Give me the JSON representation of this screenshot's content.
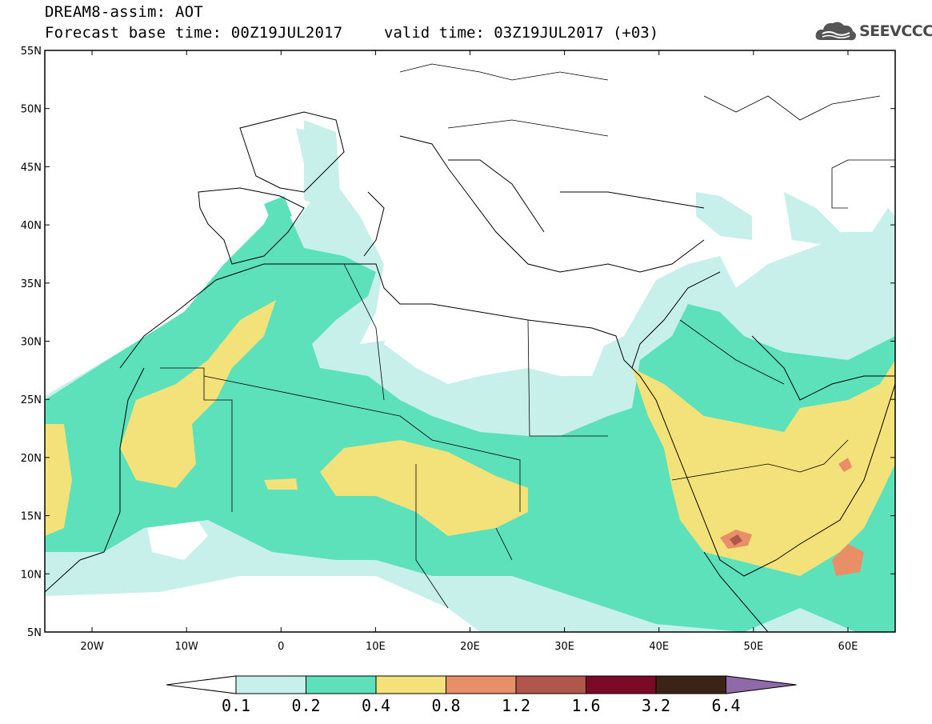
{
  "header": {
    "title": "DREAM8-assim: AOT",
    "base_time": "Forecast base time: 00Z19JUL2017",
    "valid_time": "valid time: 03Z19JUL2017 (+03)"
  },
  "logo": {
    "text": "SEEVCCC",
    "icon": "cloud-icon"
  },
  "axes": {
    "lat_labels": [
      "55N",
      "50N",
      "45N",
      "40N",
      "35N",
      "30N",
      "25N",
      "20N",
      "15N",
      "10N",
      "5N"
    ],
    "lat_values": [
      55,
      50,
      45,
      40,
      35,
      30,
      25,
      20,
      15,
      10,
      5
    ],
    "lon_labels": [
      "20W",
      "10W",
      "0",
      "10E",
      "20E",
      "30E",
      "40E",
      "50E",
      "60E"
    ],
    "lon_values": [
      -20,
      -10,
      0,
      10,
      20,
      30,
      40,
      50,
      60
    ],
    "lon_range": [
      -25,
      65
    ],
    "lat_range": [
      5,
      55
    ]
  },
  "legend": {
    "labels": [
      "0.1",
      "0.2",
      "0.4",
      "0.8",
      "1.2",
      "1.6",
      "3.2",
      "6.4"
    ],
    "colors": [
      "#ffffff",
      "#c8f0ea",
      "#5ce1bb",
      "#f3e27a",
      "#e98f67",
      "#b0564a",
      "#7a0a28",
      "#3b2316",
      "#8e6aa8"
    ]
  },
  "colors": {
    "low": "#c8f0ea",
    "mid": "#5ce1bb",
    "high": "#f3e27a",
    "very_high": "#e98f67",
    "extreme": "#b0564a"
  }
}
